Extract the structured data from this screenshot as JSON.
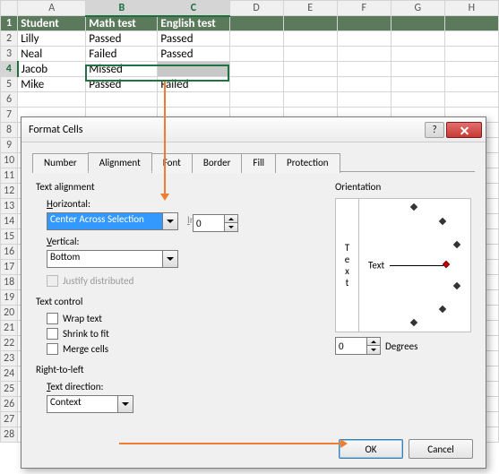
{
  "cols": [
    "",
    "A",
    "B",
    "C",
    "D",
    "E",
    "F",
    "G",
    "H"
  ],
  "rows": [
    {
      "n": "1",
      "cells": [
        "Student",
        "Math test",
        "English test"
      ],
      "header": true
    },
    {
      "n": "2",
      "cells": [
        "Lilly",
        "Passed",
        "Passed"
      ]
    },
    {
      "n": "3",
      "cells": [
        "Neal",
        "Failed",
        "Passed"
      ]
    },
    {
      "n": "4",
      "cells": [
        "Jacob",
        "Missed",
        ""
      ],
      "sel": true
    },
    {
      "n": "5",
      "cells": [
        "Mike",
        "Passed",
        "Failed"
      ]
    }
  ],
  "dialog": {
    "title": "Format Cells",
    "tabs": [
      "Number",
      "Alignment",
      "Font",
      "Border",
      "Fill",
      "Protection"
    ],
    "activeTab": 1,
    "textAlignment": "Text alignment",
    "horizontal_label": "Horizontal:",
    "horizontal_value": "Center Across Selection",
    "indent_label": "Indent:",
    "indent_value": "0",
    "vertical_label": "Vertical:",
    "vertical_value": "Bottom",
    "justify_label": "Justify distributed",
    "textControl": "Text control",
    "wrap": "Wrap text",
    "shrink": "Shrink to fit",
    "merge": "Merge cells",
    "rtl": "Right-to-left",
    "textdir_label": "Text direction:",
    "textdir_value": "Context",
    "orientation": "Orientation",
    "text_word": "Text",
    "degrees_value": "0",
    "degrees_label": "Degrees",
    "ok": "OK",
    "cancel": "Cancel"
  }
}
